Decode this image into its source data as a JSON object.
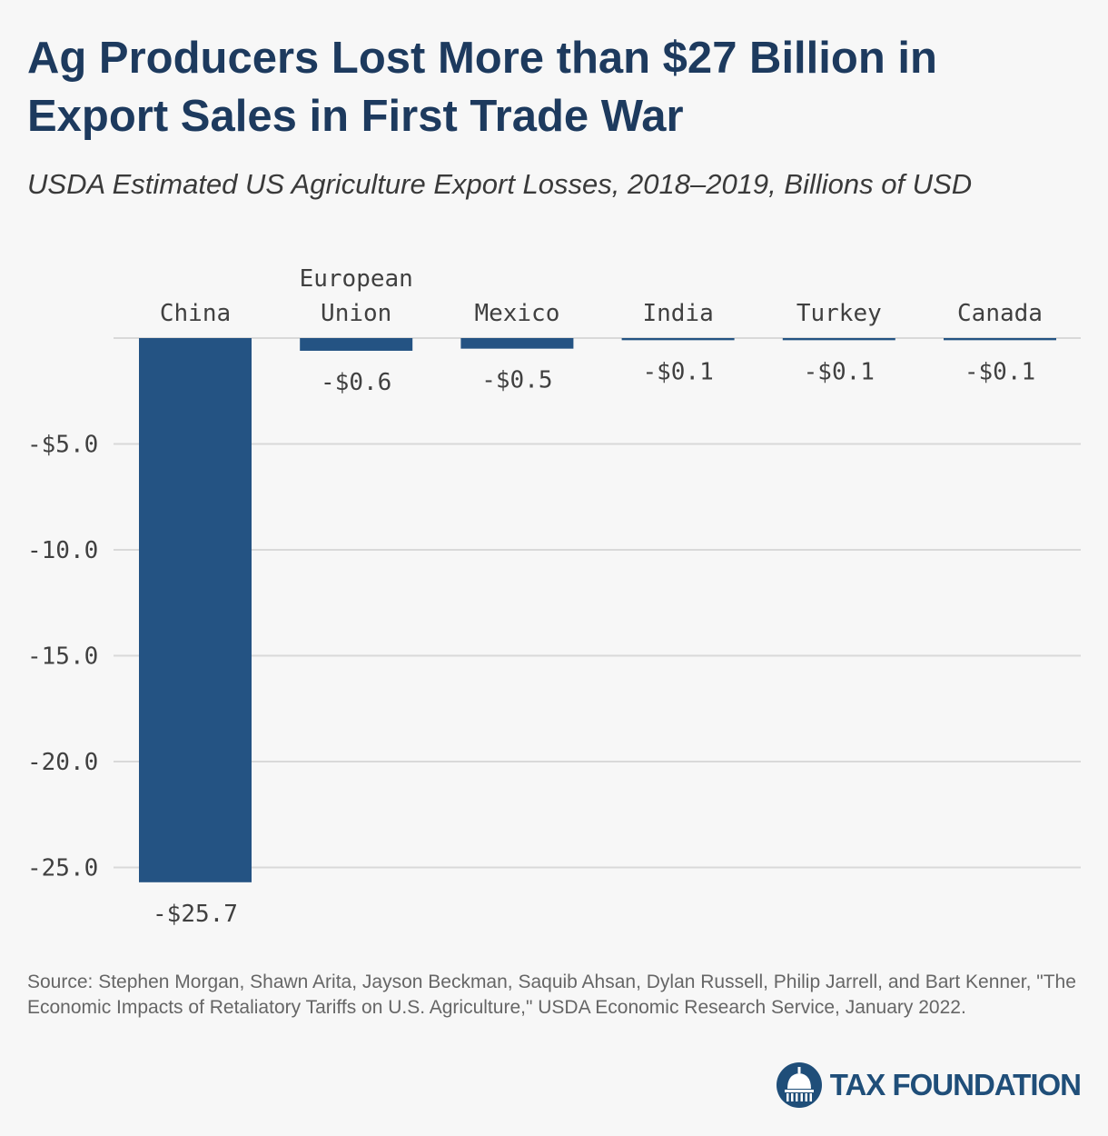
{
  "title": "Ag Producers Lost More than $27 Billion in Export Sales in First Trade War",
  "subtitle": "USDA Estimated US Agriculture Export Losses, 2018–2019, Billions of USD",
  "source": "Source: Stephen Morgan, Shawn Arita, Jayson Beckman, Saquib Ahsan, Dylan Russell, Philip Jarrell, and Bart Kenner, \"The Economic Impacts of Retaliatory Tariffs on U.S. Agriculture,\" USDA Economic Research Service, January 2022.",
  "logo": {
    "name": "TAX FOUNDATION",
    "icon": "capitol-dome-icon"
  },
  "colors": {
    "bar": "#245383",
    "title": "#1d3a5e",
    "grid": "#d9d9d9",
    "background": "#f7f7f7"
  },
  "chart_data": {
    "type": "bar",
    "categories": [
      [
        "China"
      ],
      [
        "European",
        "Union"
      ],
      [
        "Mexico"
      ],
      [
        "India"
      ],
      [
        "Turkey"
      ],
      [
        "Canada"
      ]
    ],
    "values": [
      -25.7,
      -0.6,
      -0.5,
      -0.1,
      -0.1,
      -0.1
    ],
    "value_labels": [
      "-$25.7",
      "-$0.6",
      "-$0.5",
      "-$0.1",
      "-$0.1",
      "-$0.1"
    ],
    "yticks": [
      -5,
      -10,
      -15,
      -20,
      -25
    ],
    "ytick_labels": [
      "-$5.0",
      "-10.0",
      "-15.0",
      "-20.0",
      "-25.0"
    ],
    "ylim": [
      -25.7,
      0
    ],
    "grid": true,
    "category_labels_position": "top"
  }
}
